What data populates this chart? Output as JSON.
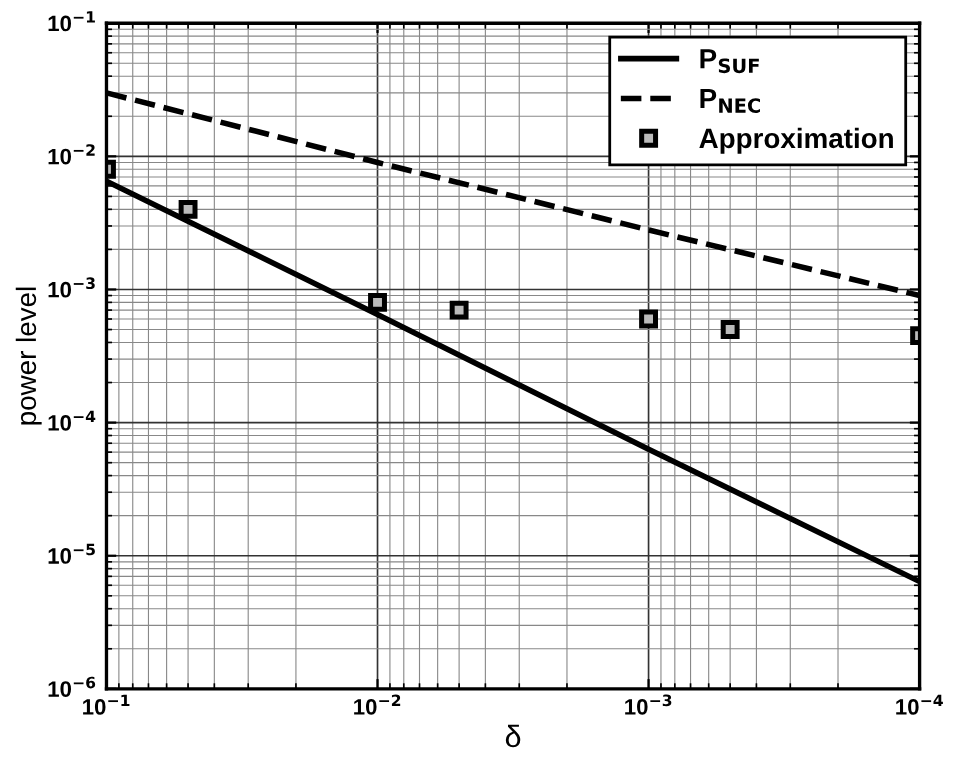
{
  "chart_data": {
    "type": "line",
    "xlabel": "δ",
    "ylabel": "power level",
    "log": "xy",
    "grid": true,
    "legend": "top right",
    "xlim": [
      0.1,
      0.0001
    ],
    "ylim": [
      1e-06,
      0.1
    ],
    "xticks": [
      {
        "value": 0.1,
        "label": "10$^{−1}$"
      },
      {
        "value": 0.01,
        "label": "10$^{−2}$"
      },
      {
        "value": 0.001,
        "label": "10$^{−3}$"
      },
      {
        "value": 0.0001,
        "label": "10$^{−4}$"
      }
    ],
    "yticks": [
      {
        "value": 1e-06,
        "label": "10$^{−6}$"
      },
      {
        "value": 1e-05,
        "label": "10$^{−5}$"
      },
      {
        "value": 0.0001,
        "label": "10$^{−4}$"
      },
      {
        "value": 0.001,
        "label": "10$^{−3}$"
      },
      {
        "value": 0.01,
        "label": "10$^{−2}$"
      },
      {
        "value": 0.1,
        "label": "10$^{−1}$"
      }
    ],
    "series": [
      {
        "name": "P$_{SUF}$",
        "line_style": "solid",
        "marker": "none",
        "color": "#000000",
        "x": [
          0.1,
          0.01,
          0.001,
          0.0001
        ],
        "values": [
          0.0065,
          0.00065,
          6.3e-05,
          6.4e-06
        ]
      },
      {
        "name": "P$_{NEC}$",
        "line_style": "dashed",
        "marker": "none",
        "color": "#000000",
        "x": [
          0.1,
          0.01,
          0.001,
          0.0001
        ],
        "values": [
          0.03,
          0.009,
          0.0028,
          0.0009
        ]
      },
      {
        "name": "Approximation",
        "type": "scatter",
        "marker": "square",
        "color": "#000000",
        "x": [
          0.1,
          0.05,
          0.01,
          0.005,
          0.001,
          0.0005,
          0.0001
        ],
        "values": [
          0.008,
          0.004,
          0.0008,
          0.0007,
          0.0006,
          0.0005,
          0.00045
        ]
      }
    ]
  }
}
